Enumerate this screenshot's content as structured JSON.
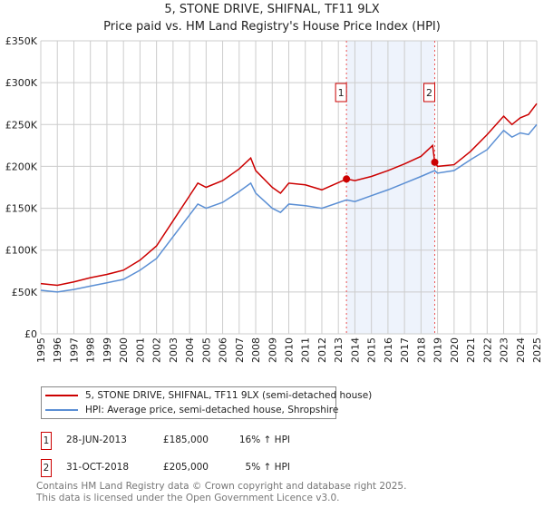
{
  "chart_data": {
    "type": "line",
    "title": "5, STONE DRIVE, SHIFNAL, TF11 9LX",
    "subtitle": "Price paid vs. HM Land Registry's House Price Index (HPI)",
    "xlim": [
      1995,
      2025
    ],
    "ylim": [
      0,
      350000
    ],
    "y_ticks": [
      "£0",
      "£50K",
      "£100K",
      "£150K",
      "£200K",
      "£250K",
      "£300K",
      "£350K"
    ],
    "x_ticks": [
      "1995",
      "1996",
      "1997",
      "1998",
      "1999",
      "2000",
      "2001",
      "2002",
      "2003",
      "2004",
      "2005",
      "2006",
      "2007",
      "2008",
      "2009",
      "2010",
      "2011",
      "2012",
      "2013",
      "2014",
      "2015",
      "2016",
      "2017",
      "2018",
      "2019",
      "2020",
      "2021",
      "2022",
      "2023",
      "2024",
      "2025"
    ],
    "grid": true,
    "series": [
      {
        "name": "5, STONE DRIVE, SHIFNAL, TF11 9LX (semi-detached house)",
        "color": "#cc0000",
        "points": [
          [
            1995,
            60
          ],
          [
            1996,
            58
          ],
          [
            1997,
            62
          ],
          [
            1998,
            67
          ],
          [
            1999,
            71
          ],
          [
            2000,
            76
          ],
          [
            2001,
            88
          ],
          [
            2002,
            105
          ],
          [
            2003,
            135
          ],
          [
            2004,
            165
          ],
          [
            2004.5,
            180
          ],
          [
            2005,
            175
          ],
          [
            2006,
            183
          ],
          [
            2007,
            197
          ],
          [
            2007.7,
            210
          ],
          [
            2008,
            195
          ],
          [
            2009,
            175
          ],
          [
            2009.5,
            168
          ],
          [
            2010,
            180
          ],
          [
            2011,
            178
          ],
          [
            2012,
            172
          ],
          [
            2013.5,
            185
          ],
          [
            2014,
            183
          ],
          [
            2015,
            188
          ],
          [
            2016,
            195
          ],
          [
            2017,
            203
          ],
          [
            2018,
            212
          ],
          [
            2018.7,
            225
          ],
          [
            2018.83,
            205
          ],
          [
            2019,
            200
          ],
          [
            2020,
            202
          ],
          [
            2021,
            218
          ],
          [
            2022,
            238
          ],
          [
            2023,
            260
          ],
          [
            2023.5,
            250
          ],
          [
            2024,
            258
          ],
          [
            2024.5,
            262
          ],
          [
            2025,
            275
          ]
        ]
      },
      {
        "name": "HPI: Average price, semi-detached house, Shropshire",
        "color": "#5b8fd4",
        "points": [
          [
            1995,
            52
          ],
          [
            1996,
            50
          ],
          [
            1997,
            53
          ],
          [
            1998,
            57
          ],
          [
            1999,
            61
          ],
          [
            2000,
            65
          ],
          [
            2001,
            76
          ],
          [
            2002,
            90
          ],
          [
            2003,
            116
          ],
          [
            2004,
            142
          ],
          [
            2004.5,
            155
          ],
          [
            2005,
            150
          ],
          [
            2006,
            157
          ],
          [
            2007,
            170
          ],
          [
            2007.7,
            180
          ],
          [
            2008,
            168
          ],
          [
            2009,
            150
          ],
          [
            2009.5,
            145
          ],
          [
            2010,
            155
          ],
          [
            2011,
            153
          ],
          [
            2012,
            150
          ],
          [
            2013.5,
            160
          ],
          [
            2014,
            158
          ],
          [
            2015,
            165
          ],
          [
            2016,
            172
          ],
          [
            2017,
            180
          ],
          [
            2018,
            188
          ],
          [
            2018.83,
            195
          ],
          [
            2019,
            192
          ],
          [
            2020,
            195
          ],
          [
            2021,
            208
          ],
          [
            2022,
            220
          ],
          [
            2023,
            243
          ],
          [
            2023.5,
            235
          ],
          [
            2024,
            240
          ],
          [
            2024.5,
            238
          ],
          [
            2025,
            250
          ]
        ]
      }
    ],
    "shaded_range": [
      2013.49,
      2018.83
    ],
    "sales": [
      {
        "id": "1",
        "year": 2013.49,
        "value": 185,
        "date": "28-JUN-2013",
        "price": "£185,000",
        "hpi": "16% ↑ HPI"
      },
      {
        "id": "2",
        "year": 2018.83,
        "value": 205,
        "date": "31-OCT-2018",
        "price": "£205,000",
        "hpi": "5% ↑ HPI"
      }
    ],
    "value_units": "thousands GBP"
  },
  "footer": [
    "Contains HM Land Registry data © Crown copyright and database right 2025.",
    "This data is licensed under the Open Government Licence v3.0."
  ]
}
